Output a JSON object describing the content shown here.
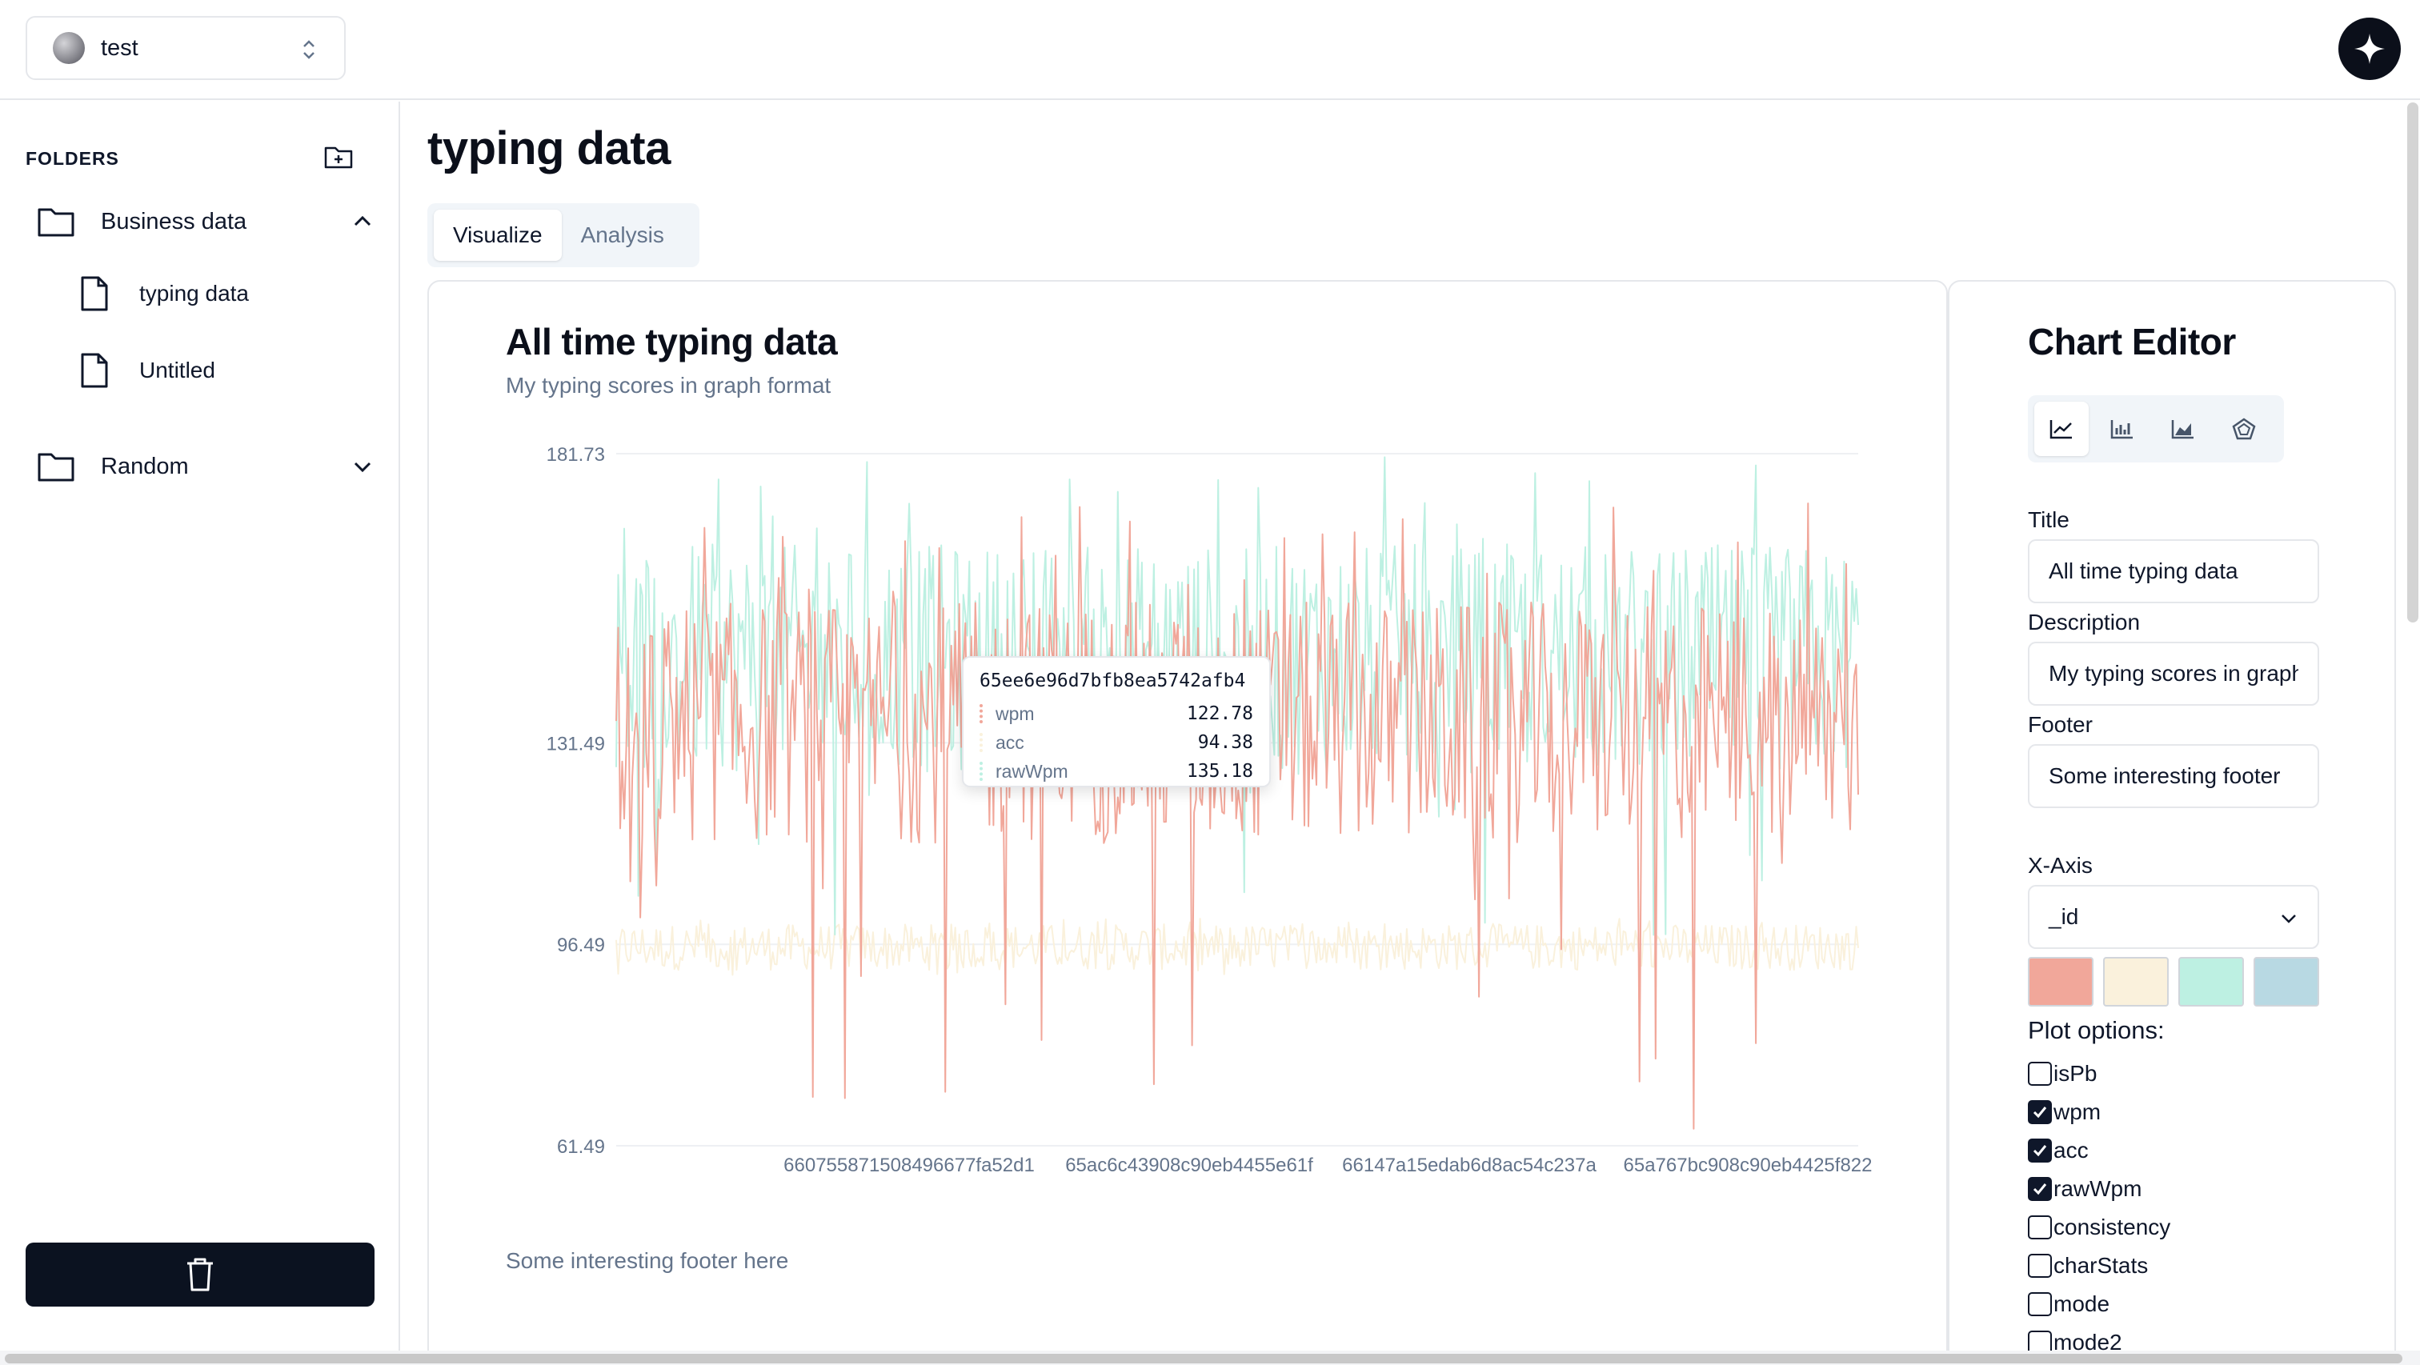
{
  "workspace": {
    "name": "test"
  },
  "sidebar": {
    "heading": "FOLDERS",
    "folders": [
      {
        "label": "Business data",
        "expanded": true,
        "files": [
          "typing data",
          "Untitled"
        ]
      },
      {
        "label": "Random",
        "expanded": false,
        "files": []
      }
    ]
  },
  "page": {
    "title": "typing data",
    "tabs": [
      {
        "label": "Visualize",
        "active": true
      },
      {
        "label": "Analysis",
        "active": false
      }
    ]
  },
  "chart": {
    "title": "All time typing data",
    "description": "My typing scores in graph format",
    "footer": "Some interesting footer here",
    "tooltip": {
      "title": "65ee6e96d7bfb8ea5742afb4",
      "rows": [
        {
          "name": "wpm",
          "value": "122.78"
        },
        {
          "name": "acc",
          "value": "94.38"
        },
        {
          "name": "rawWpm",
          "value": "135.18"
        }
      ]
    }
  },
  "chart_data": {
    "type": "area",
    "y_ticks": [
      "181.73",
      "131.49",
      "96.49",
      "61.49"
    ],
    "x_ticks": [
      "660755871508496677fa52d1",
      "65ac6c43908c90eb4455e61f",
      "66147a15edab6d8ac54c237a",
      "65a767bc908c90eb4425f822"
    ],
    "ylim": [
      61.49,
      181.73
    ],
    "series": [
      {
        "name": "wpm",
        "color": "#f1a79a",
        "typical_range": [
          115,
          160
        ],
        "dips_to": 61.49
      },
      {
        "name": "acc",
        "color": "#faf1dc",
        "typical_range": [
          90,
          100
        ]
      },
      {
        "name": "rawWpm",
        "color": "#bdf0e2",
        "typical_range": [
          125,
          170
        ],
        "peaks_to": 181.73
      }
    ],
    "highlighted_point": {
      "x": "65ee6e96d7bfb8ea5742afb4",
      "wpm": 122.78,
      "acc": 94.38,
      "rawWpm": 135.18
    },
    "grid": "horizontal",
    "legend": "none"
  },
  "editor": {
    "title": "Chart Editor",
    "chart_types": [
      "line-chart-icon",
      "bar-chart-icon",
      "area-chart-icon",
      "radar-chart-icon"
    ],
    "title_label": "Title",
    "title_value": "All time typing data",
    "description_label": "Description",
    "description_value": "My typing scores in graph format",
    "footer_label": "Footer",
    "footer_value": "Some interesting footer",
    "xaxis_label": "X-Axis",
    "xaxis_value": "_id",
    "colors": [
      "#f1a79a",
      "#faf1dc",
      "#bdf0e2",
      "#b8d9e3"
    ],
    "plot_options_label": "Plot options:",
    "plot_options": [
      {
        "label": "isPb",
        "checked": false
      },
      {
        "label": "wpm",
        "checked": true
      },
      {
        "label": "acc",
        "checked": true
      },
      {
        "label": "rawWpm",
        "checked": true
      },
      {
        "label": "consistency",
        "checked": false
      },
      {
        "label": "charStats",
        "checked": false
      },
      {
        "label": "mode",
        "checked": false
      },
      {
        "label": "mode2",
        "checked": false
      }
    ]
  }
}
